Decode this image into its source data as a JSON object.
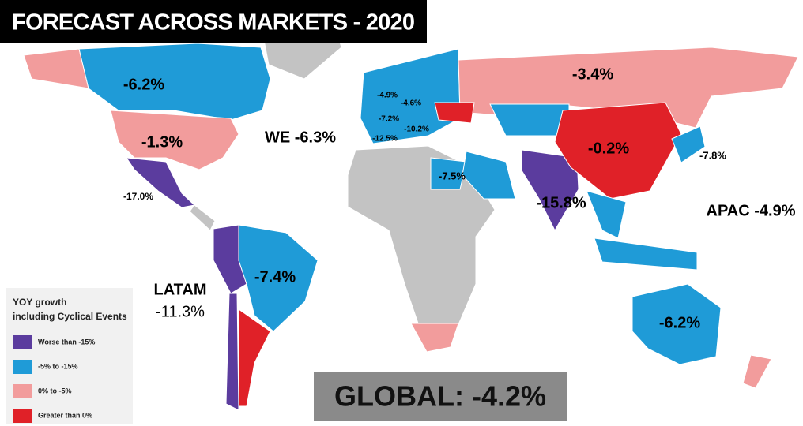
{
  "header": {
    "title": "FORECAST ACROSS MARKETS - 2020"
  },
  "map_labels": {
    "canada": "-6.2%",
    "usa": "-1.3%",
    "we": "WE -6.3%",
    "russia": "-3.4%",
    "china": "-0.2%",
    "japan": "-7.8%",
    "apac": "APAC -4.9%",
    "india": "-15.8%",
    "middle_east": "-7.5%",
    "mexico": "-17.0%",
    "latam": "LATAM",
    "latam_value": "-11.3%",
    "brazil": "-7.4%",
    "australia": "-6.2%",
    "uk": "-4.9%",
    "germany": "-4.6%",
    "france": "-7.2%",
    "italy": "-10.2%",
    "spain": "-12.5%"
  },
  "legend": {
    "title": [
      "YOY growth",
      "including Cyclical Events"
    ],
    "items": [
      {
        "label": "Worse than -15%",
        "color": "#5b3c9e"
      },
      {
        "label": "-5% to -15%",
        "color": "#1f9bd7"
      },
      {
        "label": "0% to -5%",
        "color": "#f29c9c"
      },
      {
        "label": "Greater than 0%",
        "color": "#e02128"
      }
    ]
  },
  "global": "GLOBAL: -4.2%"
}
